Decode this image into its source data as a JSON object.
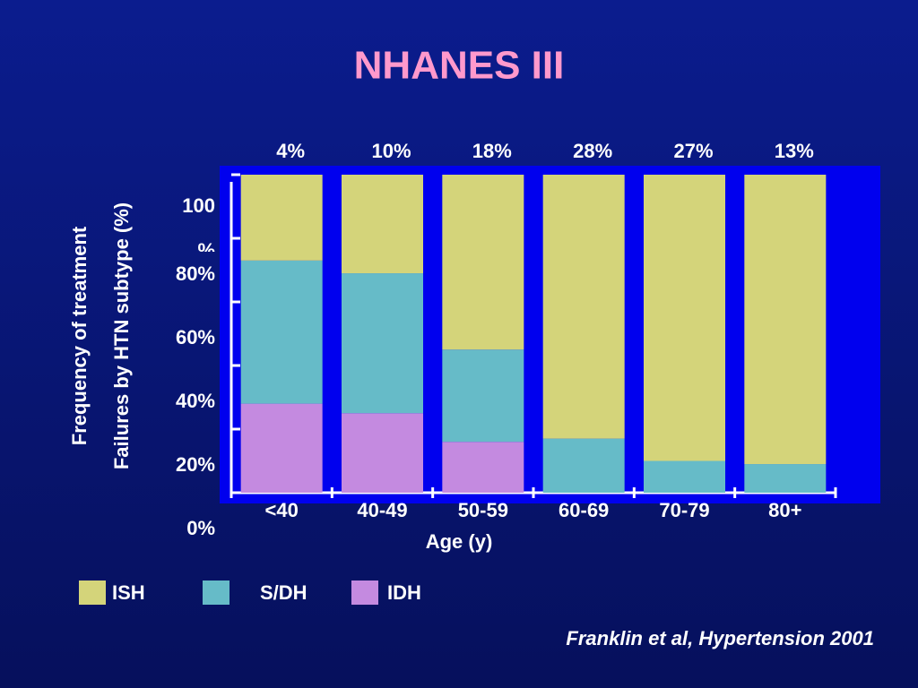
{
  "chart_data": {
    "type": "stacked_bar",
    "title": "NHANES III",
    "y_label": [
      "Frequency of treatment",
      "Failures by HTN subtype (%)"
    ],
    "x_label": "Age (y)",
    "categories": [
      "<40",
      "40-49",
      "50-59",
      "60-69",
      "70-79",
      "80+"
    ],
    "top_labels": [
      "4%",
      "10%",
      "18%",
      "28%",
      "27%",
      "13%"
    ],
    "series": [
      {
        "name": "ISH",
        "color": "#d4d47a",
        "values": [
          27,
          31,
          55,
          83,
          90,
          91
        ]
      },
      {
        "name": "S/DH",
        "color": "#66bbc8",
        "values": [
          45,
          44,
          29,
          17,
          10,
          9
        ]
      },
      {
        "name": "IDH",
        "color": "#c48ae0",
        "values": [
          28,
          25,
          16,
          0,
          0,
          0
        ]
      }
    ],
    "ylim": [
      0,
      100
    ],
    "yticks": [
      {
        "value": 0,
        "label": "0%"
      },
      {
        "value": 20,
        "label": "20%"
      },
      {
        "value": 40,
        "label": "40%"
      },
      {
        "value": 60,
        "label": "60%"
      },
      {
        "value": 80,
        "label": "80%"
      },
      {
        "value": 100,
        "label": "100 %"
      }
    ],
    "source": "Franklin et al, Hypertension 2001"
  }
}
